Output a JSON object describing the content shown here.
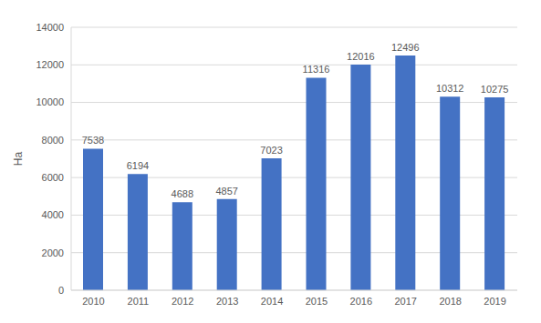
{
  "chart_data": {
    "type": "bar",
    "y_label": "Ha",
    "categories": [
      "2010",
      "2011",
      "2012",
      "2013",
      "2014",
      "2015",
      "2016",
      "2017",
      "2018",
      "2019"
    ],
    "values": [
      7538,
      6194,
      4688,
      4857,
      7023,
      11316,
      12016,
      12496,
      10312,
      10275
    ],
    "color": "#4472c4",
    "ylim": [
      0,
      14000
    ],
    "yticks": [
      0,
      2000,
      4000,
      6000,
      8000,
      10000,
      12000,
      14000
    ],
    "grid": true,
    "data_labels": true
  }
}
